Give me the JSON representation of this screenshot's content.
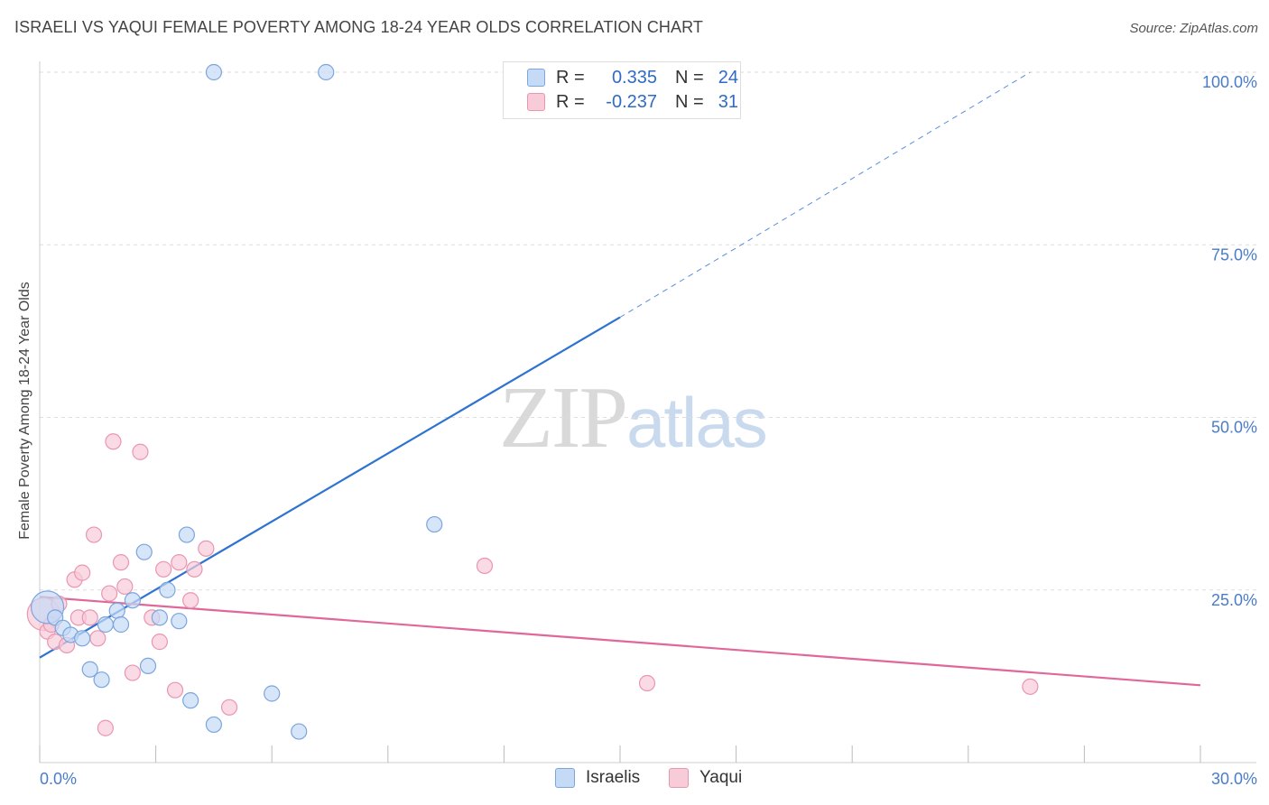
{
  "header": {
    "title": "ISRAELI VS YAQUI FEMALE POVERTY AMONG 18-24 YEAR OLDS CORRELATION CHART",
    "source": "Source: ZipAtlas.com"
  },
  "watermark": {
    "zip": "ZIP",
    "atlas": "atlas"
  },
  "legend": {
    "rows": [
      {
        "r_label": "R =",
        "r_value": "0.335",
        "n_label": "N =",
        "n_value": "24",
        "color": "#a9c8f0"
      },
      {
        "r_label": "R =",
        "r_value": "-0.237",
        "n_label": "N =",
        "n_value": "31",
        "color": "#f6bccd"
      }
    ]
  },
  "colors": {
    "israelis_fill": "#c5daf5",
    "israelis_stroke": "#7ba5de",
    "israelis_line": "#2f73d2",
    "yaqui_fill": "#f8cbd8",
    "yaqui_stroke": "#ea96b0",
    "yaqui_line": "#e0679a",
    "grid": "#dddddd",
    "axis_text": "#4a7cc9"
  },
  "chart_data": {
    "type": "scatter",
    "title": "ISRAELI VS YAQUI FEMALE POVERTY AMONG 18-24 YEAR OLDS CORRELATION CHART",
    "xlabel": "",
    "ylabel": "Female Poverty Among 18-24 Year Olds",
    "xlim": [
      0,
      30
    ],
    "ylim": [
      0,
      100
    ],
    "x_tick_labels": [
      "0.0%",
      "30.0%"
    ],
    "y_ticks": [
      25,
      50,
      75,
      100
    ],
    "y_tick_labels": [
      "25.0%",
      "50.0%",
      "75.0%",
      "100.0%"
    ],
    "grid": true,
    "legend_position": "top-center",
    "series": [
      {
        "name": "Israelis",
        "r": 0.335,
        "n": 24,
        "points": [
          {
            "x": 0.2,
            "y": 22.5,
            "big": true
          },
          {
            "x": 0.4,
            "y": 21.0
          },
          {
            "x": 0.6,
            "y": 19.5
          },
          {
            "x": 0.8,
            "y": 18.5
          },
          {
            "x": 1.1,
            "y": 18.0
          },
          {
            "x": 1.3,
            "y": 13.5
          },
          {
            "x": 1.6,
            "y": 12.0
          },
          {
            "x": 1.7,
            "y": 20.0
          },
          {
            "x": 2.0,
            "y": 22.0
          },
          {
            "x": 2.1,
            "y": 20.0
          },
          {
            "x": 2.4,
            "y": 23.5
          },
          {
            "x": 2.7,
            "y": 30.5
          },
          {
            "x": 2.8,
            "y": 14.0
          },
          {
            "x": 3.1,
            "y": 21.0
          },
          {
            "x": 3.3,
            "y": 25.0
          },
          {
            "x": 3.6,
            "y": 20.5
          },
          {
            "x": 3.8,
            "y": 33.0
          },
          {
            "x": 3.9,
            "y": 9.0
          },
          {
            "x": 4.5,
            "y": 5.5
          },
          {
            "x": 6.0,
            "y": 10.0
          },
          {
            "x": 6.7,
            "y": 4.5
          },
          {
            "x": 4.5,
            "y": 100.0
          },
          {
            "x": 7.4,
            "y": 100.0
          },
          {
            "x": 10.2,
            "y": 34.5
          }
        ],
        "trend": {
          "x0": 0,
          "y0": 15.2,
          "x1": 15,
          "y1": 64.5,
          "dashed_to_x": 25.6,
          "dashed_to_y": 100.0
        }
      },
      {
        "name": "Yaqui",
        "r": -0.237,
        "n": 31,
        "points": [
          {
            "x": 0.1,
            "y": 21.5,
            "big": true
          },
          {
            "x": 0.2,
            "y": 19.0
          },
          {
            "x": 0.4,
            "y": 17.5
          },
          {
            "x": 0.5,
            "y": 23.0
          },
          {
            "x": 0.7,
            "y": 17.0
          },
          {
            "x": 0.9,
            "y": 26.5
          },
          {
            "x": 1.0,
            "y": 21.0
          },
          {
            "x": 1.1,
            "y": 27.5
          },
          {
            "x": 1.3,
            "y": 21.0
          },
          {
            "x": 1.4,
            "y": 33.0
          },
          {
            "x": 1.5,
            "y": 18.0
          },
          {
            "x": 1.7,
            "y": 5.0
          },
          {
            "x": 1.8,
            "y": 24.5
          },
          {
            "x": 1.9,
            "y": 46.5
          },
          {
            "x": 2.1,
            "y": 29.0
          },
          {
            "x": 2.2,
            "y": 25.5
          },
          {
            "x": 2.4,
            "y": 13.0
          },
          {
            "x": 2.6,
            "y": 45.0
          },
          {
            "x": 2.9,
            "y": 21.0
          },
          {
            "x": 3.1,
            "y": 17.5
          },
          {
            "x": 3.2,
            "y": 28.0
          },
          {
            "x": 3.5,
            "y": 10.5
          },
          {
            "x": 3.6,
            "y": 29.0
          },
          {
            "x": 3.9,
            "y": 23.5
          },
          {
            "x": 4.0,
            "y": 28.0
          },
          {
            "x": 4.3,
            "y": 31.0
          },
          {
            "x": 4.9,
            "y": 8.0
          },
          {
            "x": 11.5,
            "y": 28.5
          },
          {
            "x": 15.7,
            "y": 11.5
          },
          {
            "x": 25.6,
            "y": 11.0
          },
          {
            "x": 0.3,
            "y": 20.0
          }
        ],
        "trend": {
          "x0": 0,
          "y0": 24.0,
          "x1": 30,
          "y1": 11.2
        }
      }
    ]
  }
}
